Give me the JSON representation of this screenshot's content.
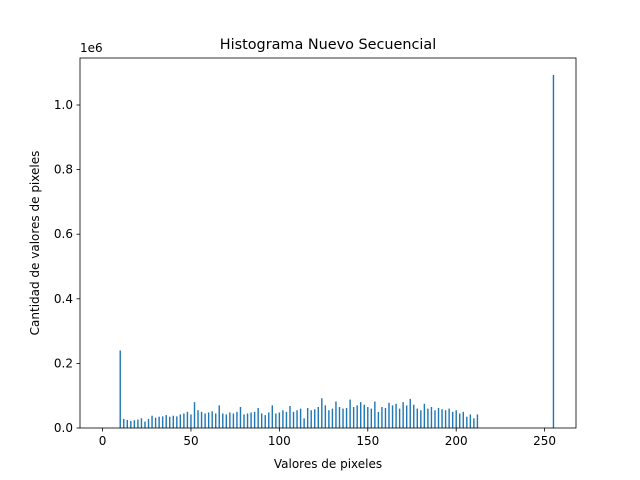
{
  "chart_data": {
    "type": "bar",
    "title": "Histograma Nuevo Secuencial",
    "xlabel": "Valores de pixeles",
    "ylabel": "Cantidad de valores de pixeles",
    "y_offset_text": "1e6",
    "color": "#1f77b4",
    "bar_width": 0.8,
    "x": [
      10,
      12,
      14,
      16,
      18,
      20,
      22,
      24,
      26,
      28,
      30,
      32,
      34,
      36,
      38,
      40,
      42,
      44,
      46,
      48,
      50,
      52,
      54,
      56,
      58,
      60,
      62,
      64,
      66,
      68,
      70,
      72,
      74,
      76,
      78,
      80,
      82,
      84,
      86,
      88,
      90,
      92,
      94,
      96,
      98,
      100,
      102,
      104,
      106,
      108,
      110,
      112,
      114,
      116,
      118,
      120,
      122,
      124,
      126,
      128,
      130,
      132,
      134,
      136,
      138,
      140,
      142,
      144,
      146,
      148,
      150,
      152,
      154,
      156,
      158,
      160,
      162,
      164,
      166,
      168,
      170,
      172,
      174,
      176,
      178,
      180,
      182,
      184,
      186,
      188,
      190,
      192,
      194,
      196,
      198,
      200,
      202,
      204,
      206,
      208,
      210,
      212,
      255
    ],
    "values": [
      240000,
      28000,
      25000,
      22000,
      24000,
      26000,
      30000,
      20000,
      28000,
      38000,
      32000,
      35000,
      36000,
      40000,
      35000,
      38000,
      36000,
      42000,
      45000,
      50000,
      42000,
      80000,
      55000,
      50000,
      45000,
      48000,
      52000,
      45000,
      70000,
      45000,
      42000,
      48000,
      45000,
      50000,
      65000,
      42000,
      45000,
      48000,
      50000,
      62000,
      45000,
      40000,
      48000,
      70000,
      45000,
      48000,
      55000,
      50000,
      68000,
      50000,
      55000,
      60000,
      30000,
      62000,
      55000,
      58000,
      65000,
      92000,
      70000,
      55000,
      60000,
      82000,
      65000,
      60000,
      62000,
      88000,
      65000,
      70000,
      80000,
      72000,
      65000,
      60000,
      82000,
      50000,
      65000,
      62000,
      78000,
      70000,
      75000,
      60000,
      80000,
      70000,
      90000,
      72000,
      60000,
      55000,
      75000,
      60000,
      65000,
      55000,
      62000,
      58000,
      55000,
      60000,
      50000,
      55000,
      45000,
      50000,
      35000,
      42000,
      30000,
      42000,
      1093000
    ],
    "xlim": [
      -12.75,
      267.75
    ],
    "ylim": [
      0,
      1145500
    ],
    "xticks": [
      0,
      50,
      100,
      150,
      200,
      250
    ],
    "yticks": [
      {
        "value": 0,
        "label": "0.0"
      },
      {
        "value": 200000,
        "label": "0.2"
      },
      {
        "value": 400000,
        "label": "0.4"
      },
      {
        "value": 600000,
        "label": "0.6"
      },
      {
        "value": 800000,
        "label": "0.8"
      },
      {
        "value": 1000000,
        "label": "1.0"
      }
    ]
  }
}
